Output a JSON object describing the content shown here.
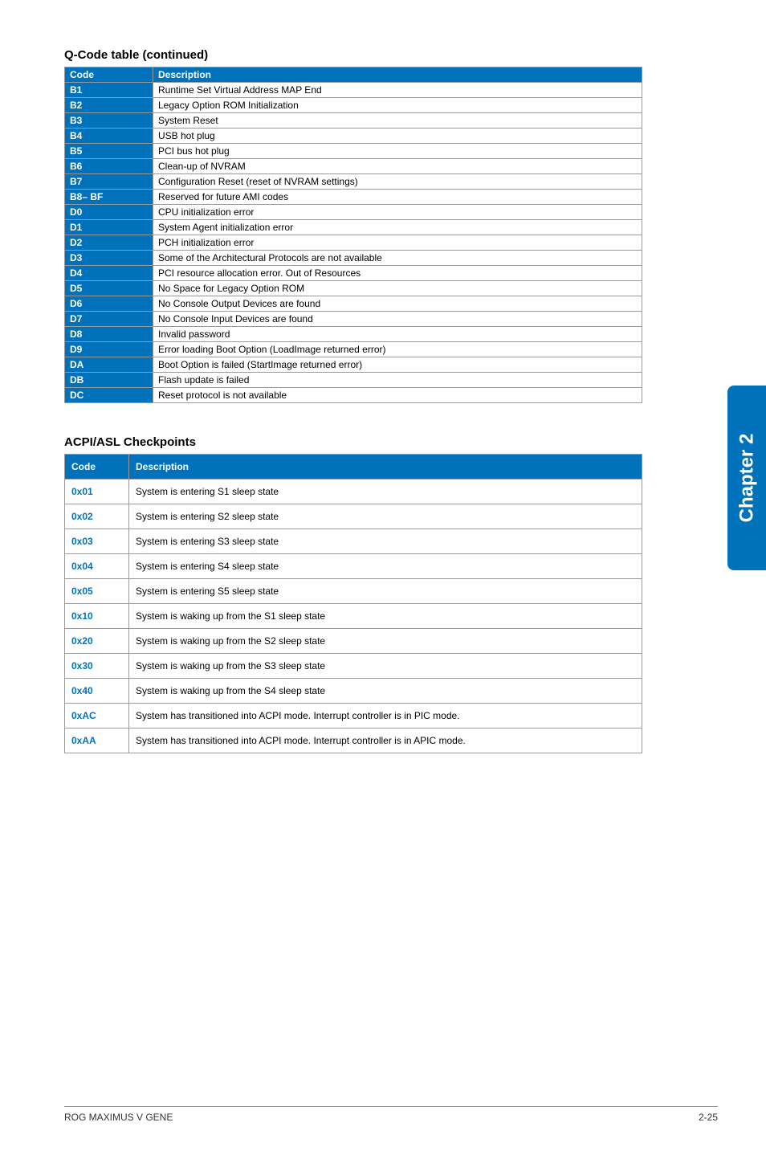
{
  "qcode": {
    "title": "Q-Code table (continued)",
    "title_fontsize": 15,
    "header_bg": "#0072bc",
    "header_text_color": "#ffffff",
    "code_col_bg": "#0072bc",
    "code_col_text_color": "#ffffff",
    "desc_bg": "#ffffff",
    "desc_text_color": "#000000",
    "border_color": "#999999",
    "font_size": 12,
    "columns": [
      "Code",
      "Description"
    ],
    "rows": [
      [
        "B1",
        "Runtime Set Virtual Address MAP End"
      ],
      [
        "B2",
        "Legacy Option ROM Initialization"
      ],
      [
        "B3",
        "System Reset"
      ],
      [
        "B4",
        "USB hot plug"
      ],
      [
        "B5",
        "PCI bus hot plug"
      ],
      [
        "B6",
        "Clean-up of NVRAM"
      ],
      [
        "B7",
        "Configuration Reset (reset of NVRAM settings)"
      ],
      [
        "B8– BF",
        "Reserved for future AMI codes"
      ],
      [
        "D0",
        "CPU initialization error"
      ],
      [
        "D1",
        "System Agent initialization error"
      ],
      [
        "D2",
        "PCH initialization error"
      ],
      [
        "D3",
        "Some of the Architectural Protocols are not available"
      ],
      [
        "D4",
        "PCI resource allocation error.  Out of Resources"
      ],
      [
        "D5",
        "No Space for Legacy Option ROM"
      ],
      [
        "D6",
        "No Console Output Devices are found"
      ],
      [
        "D7",
        "No Console Input Devices are found"
      ],
      [
        "D8",
        "Invalid password"
      ],
      [
        "D9",
        "Error loading Boot Option (LoadImage returned error)"
      ],
      [
        "DA",
        "Boot Option is failed (StartImage returned error)"
      ],
      [
        "DB",
        "Flash update is failed"
      ],
      [
        "DC",
        "Reset protocol is not available"
      ]
    ]
  },
  "acpi": {
    "title": "ACPI/ASL Checkpoints",
    "title_fontsize": 15,
    "header_bg": "#0072bc",
    "header_text_color": "#ffffff",
    "code_text_color": "#0072bc",
    "desc_text_color": "#000000",
    "border_color": "#999999",
    "font_size": 12,
    "row_padding": 8,
    "columns": [
      "Code",
      "Description"
    ],
    "rows": [
      [
        "0x01",
        "System is entering S1 sleep state"
      ],
      [
        "0x02",
        "System is entering S2 sleep state"
      ],
      [
        "0x03",
        "System is entering S3 sleep state"
      ],
      [
        "0x04",
        "System is entering S4 sleep state"
      ],
      [
        "0x05",
        "System is entering S5 sleep state"
      ],
      [
        "0x10",
        "System is waking up from the S1 sleep state"
      ],
      [
        "0x20",
        "System is waking up from the S2 sleep state"
      ],
      [
        "0x30",
        "System is waking up from the S3 sleep state"
      ],
      [
        "0x40",
        "System is waking up from the S4 sleep state"
      ],
      [
        "0xAC",
        "System has transitioned into ACPI mode. Interrupt controller is in PIC mode."
      ],
      [
        "0xAA",
        "System has transitioned into ACPI mode. Interrupt controller is in APIC mode."
      ]
    ]
  },
  "side_tab": {
    "label": "Chapter 2",
    "bg": "#0072bc",
    "text_color": "#ffffff",
    "font_size": 24
  },
  "footer": {
    "left": "ROG MAXIMUS V GENE",
    "right": "2-25",
    "font_size": 12,
    "border_color": "#888888"
  }
}
